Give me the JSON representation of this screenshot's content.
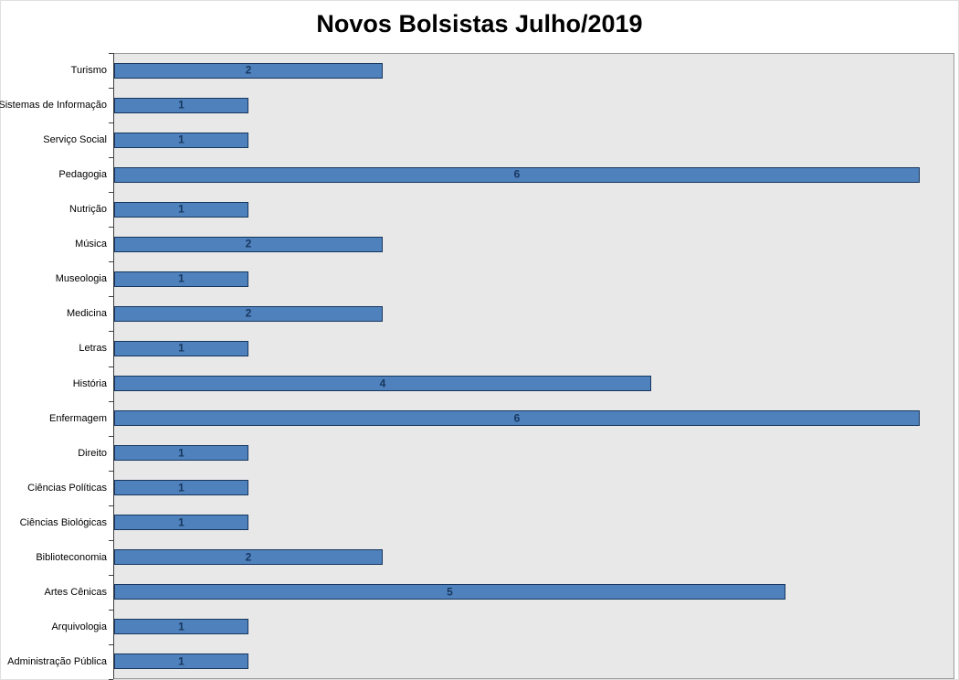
{
  "chart_data": {
    "type": "bar",
    "orientation": "horizontal",
    "title": "Novos Bolsistas Julho/2019",
    "categories": [
      "Turismo",
      "Sistemas de Informação",
      "Serviço Social",
      "Pedagogia",
      "Nutrição",
      "Música",
      "Museologia",
      "Medicina",
      "Letras",
      "História",
      "Enfermagem",
      "Direito",
      "Ciências Políticas",
      "Ciências Biológicas",
      "Biblioteconomia",
      "Artes Cênicas",
      "Arquivologia",
      "Administração Pública"
    ],
    "values": [
      2,
      1,
      1,
      6,
      1,
      2,
      1,
      2,
      1,
      4,
      6,
      1,
      1,
      1,
      2,
      5,
      1,
      1
    ],
    "xlabel": "",
    "ylabel": "",
    "xlim": [
      0,
      6
    ],
    "grid": false,
    "legend": "none",
    "data_labels": "center",
    "bar_color": "#4F81BD",
    "bar_border_color": "#17375E",
    "label_color": "#17375E",
    "plot_background": "#E8E8E8"
  }
}
